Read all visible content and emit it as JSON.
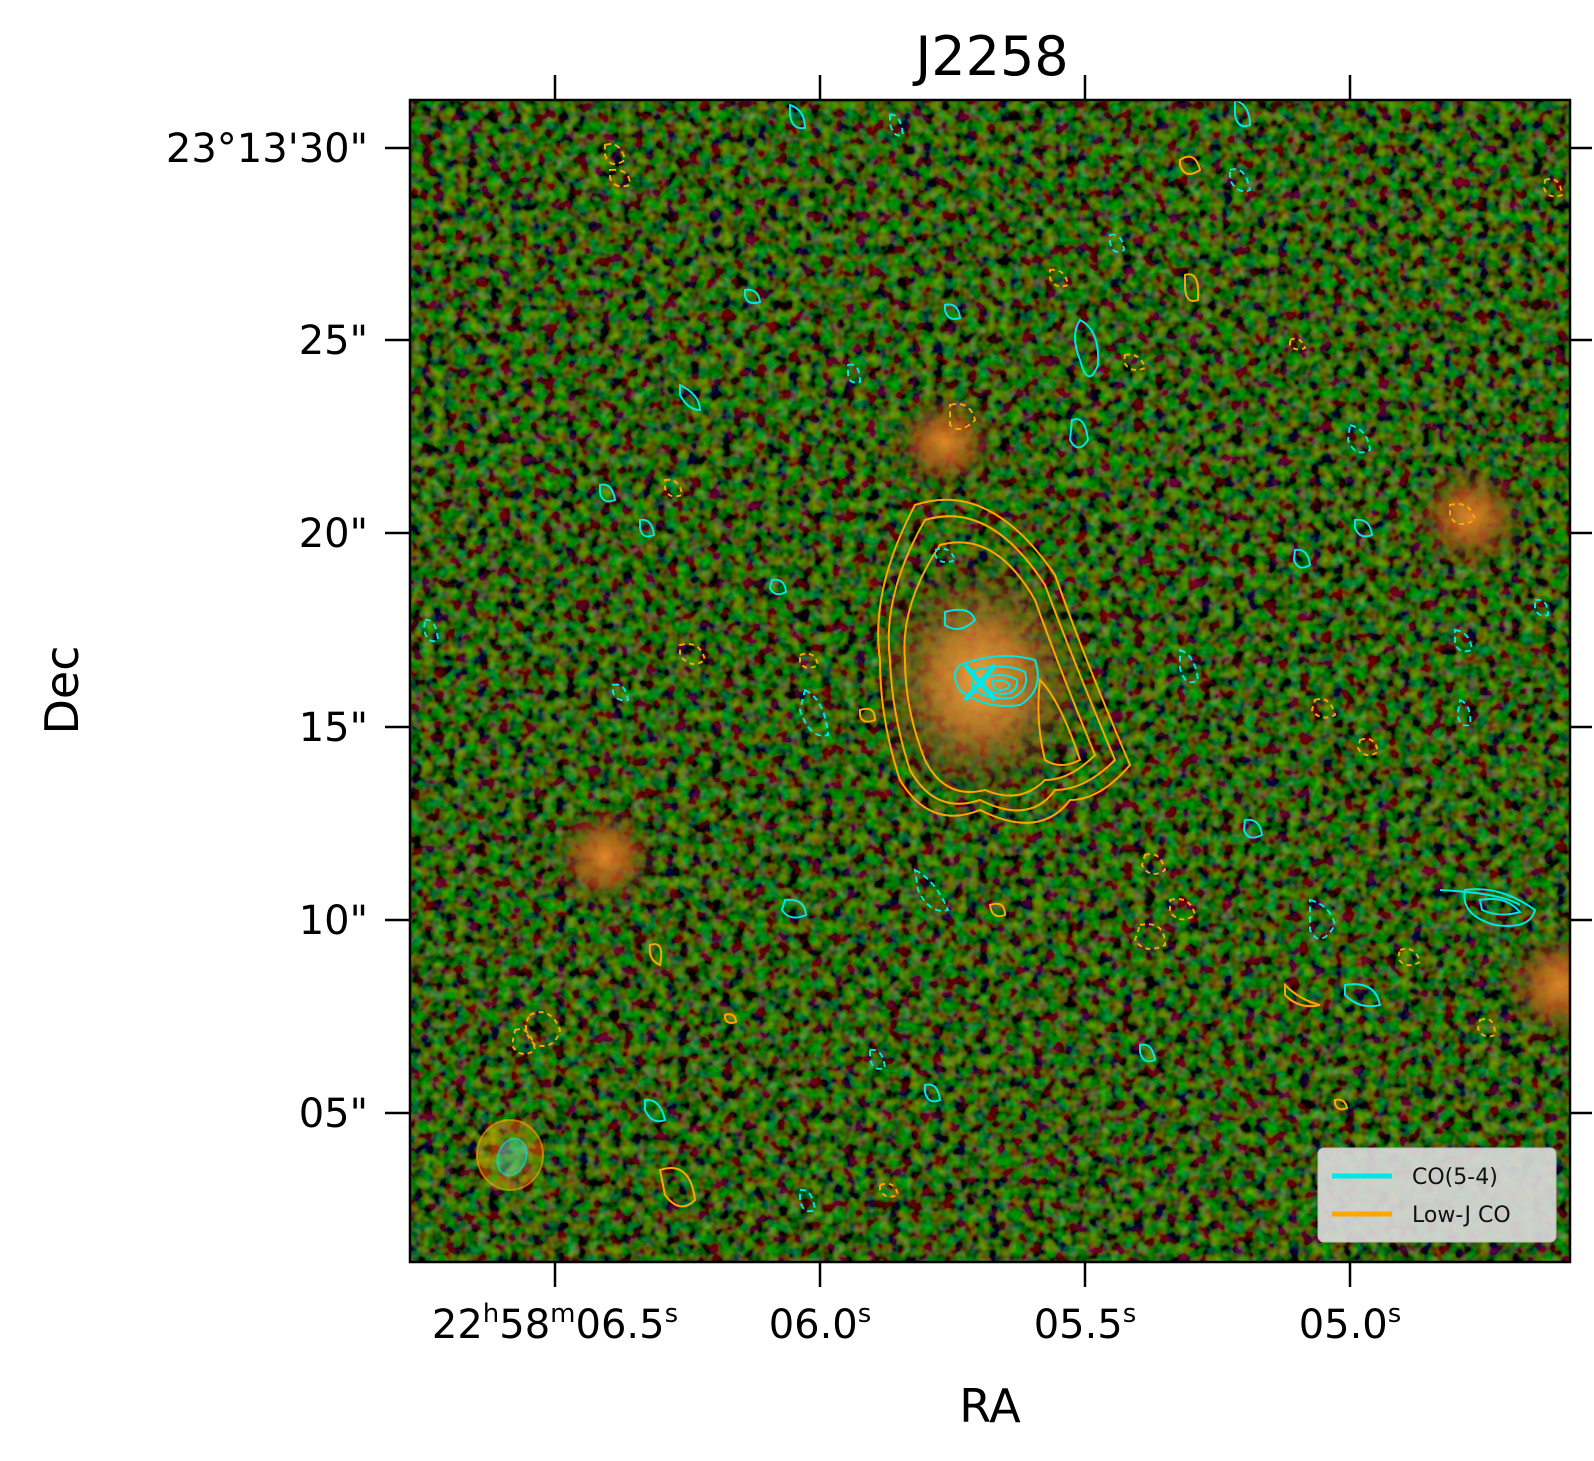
{
  "title": "J2258",
  "xlabel": "RA",
  "ylabel": "Dec",
  "x_ticks": [
    {
      "main": "22",
      "s1": "h",
      "m": "58",
      "s2": "m",
      "tail": "06.5",
      "s3": "s"
    },
    {
      "main": "",
      "s1": "",
      "m": "",
      "s2": "",
      "tail": "06.0",
      "s3": "s"
    },
    {
      "main": "",
      "s1": "",
      "m": "",
      "s2": "",
      "tail": "05.5",
      "s3": "s"
    },
    {
      "main": "",
      "s1": "",
      "m": "",
      "s2": "",
      "tail": "05.0",
      "s3": "s"
    }
  ],
  "y_ticks": [
    "23°13'30\"",
    "25\"",
    "20\"",
    "15\"",
    "10\"",
    "05\""
  ],
  "legend": [
    {
      "label": "CO(5-4)",
      "color": "#00e5e5"
    },
    {
      "label": "Low-J CO",
      "color": "#ffa500"
    }
  ],
  "colors": {
    "co54": "#00e5e5",
    "lowj": "#ffa500",
    "background": "#0a120a"
  }
}
